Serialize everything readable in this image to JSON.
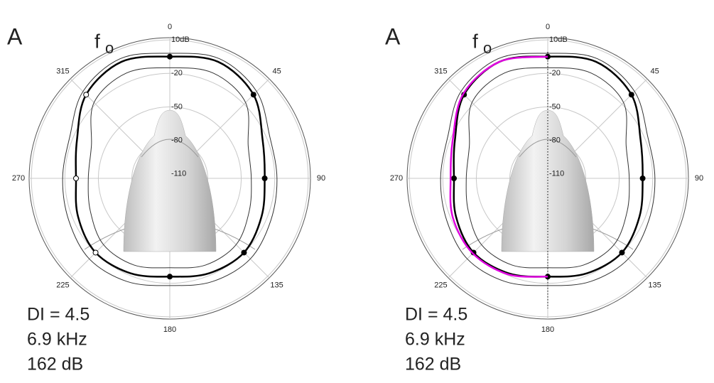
{
  "chart_data": [
    {
      "type": "polar",
      "panel_label": "A",
      "title": "f",
      "title_subscript": "o",
      "annotations": [
        "DI = 4.5",
        "6.9 kHz",
        "162 dB"
      ],
      "theta": [
        0,
        22.5,
        45,
        67.5,
        90,
        112.5,
        135,
        157.5,
        180,
        202.5,
        225,
        247.5,
        270,
        292.5,
        315,
        337.5
      ],
      "thetaticks": [
        0,
        45,
        90,
        135,
        180,
        225,
        270,
        315
      ],
      "rlim": [
        -114,
        12
      ],
      "rticks": [
        {
          "value": 10,
          "label": "10dB"
        },
        -20,
        -50,
        -80,
        -110
      ],
      "grid": true,
      "open_left_markers": true,
      "center_line": false,
      "series": [
        {
          "color": "#000000",
          "line_width": 2.5,
          "markers": true,
          "values": [
            -5,
            -1,
            -8,
            -24,
            -29,
            -25,
            -20,
            -22,
            -26,
            -22,
            -20,
            -25,
            -30,
            -24,
            -8,
            -1
          ]
        },
        {
          "color": "#333333",
          "line_width": 1,
          "markers": false,
          "values": [
            -2,
            2,
            -4,
            -17,
            -18,
            -16,
            -12,
            -14,
            -18,
            -14,
            -12,
            -16,
            -18,
            -17,
            -4,
            2
          ]
        },
        {
          "color": "#333333",
          "line_width": 1,
          "markers": false,
          "values": [
            -15,
            -12,
            -18,
            -38,
            -41,
            -37,
            -30,
            -30,
            -34,
            -30,
            -30,
            -37,
            -41,
            -38,
            -18,
            -12
          ]
        }
      ]
    },
    {
      "type": "polar",
      "panel_label": "A",
      "title": "f",
      "title_subscript": "o",
      "annotations": [
        "DI = 4.5",
        "6.9 kHz",
        "162 dB"
      ],
      "theta": [
        0,
        22.5,
        45,
        67.5,
        90,
        112.5,
        135,
        157.5,
        180,
        202.5,
        225,
        247.5,
        270,
        292.5,
        315,
        337.5
      ],
      "thetaticks": [
        0,
        45,
        90,
        135,
        180,
        225,
        270,
        315
      ],
      "rlim": [
        -114,
        12
      ],
      "rticks": [
        {
          "value": 10,
          "label": "10dB"
        },
        -20,
        -50,
        -80,
        -110
      ],
      "grid": true,
      "open_left_markers": false,
      "center_line": true,
      "series": [
        {
          "color": "#000000",
          "line_width": 2.5,
          "markers": true,
          "values": [
            -5,
            -1,
            -8,
            -24,
            -29,
            -25,
            -20,
            -22,
            -26,
            -22,
            -20,
            -25,
            -30,
            -24,
            -8,
            -1
          ]
        },
        {
          "color": "#333333",
          "line_width": 1,
          "markers": false,
          "values": [
            -2,
            2,
            -4,
            -17,
            -18,
            -16,
            -12,
            -14,
            -18,
            -14,
            -12,
            -16,
            -18,
            -17,
            -4,
            2
          ]
        },
        {
          "color": "#333333",
          "line_width": 1,
          "markers": false,
          "values": [
            -15,
            -12,
            -18,
            -38,
            -41,
            -37,
            -30,
            -30,
            -34,
            -30,
            -30,
            -37,
            -41,
            -38,
            -18,
            -12
          ]
        },
        {
          "color": "#e000e0",
          "line_width": 2.5,
          "markers": false,
          "values": [
            -5,
            null,
            null,
            null,
            null,
            null,
            null,
            null,
            -26,
            -21,
            -19,
            -22,
            -27,
            -22,
            -7,
            -1
          ]
        }
      ]
    }
  ]
}
